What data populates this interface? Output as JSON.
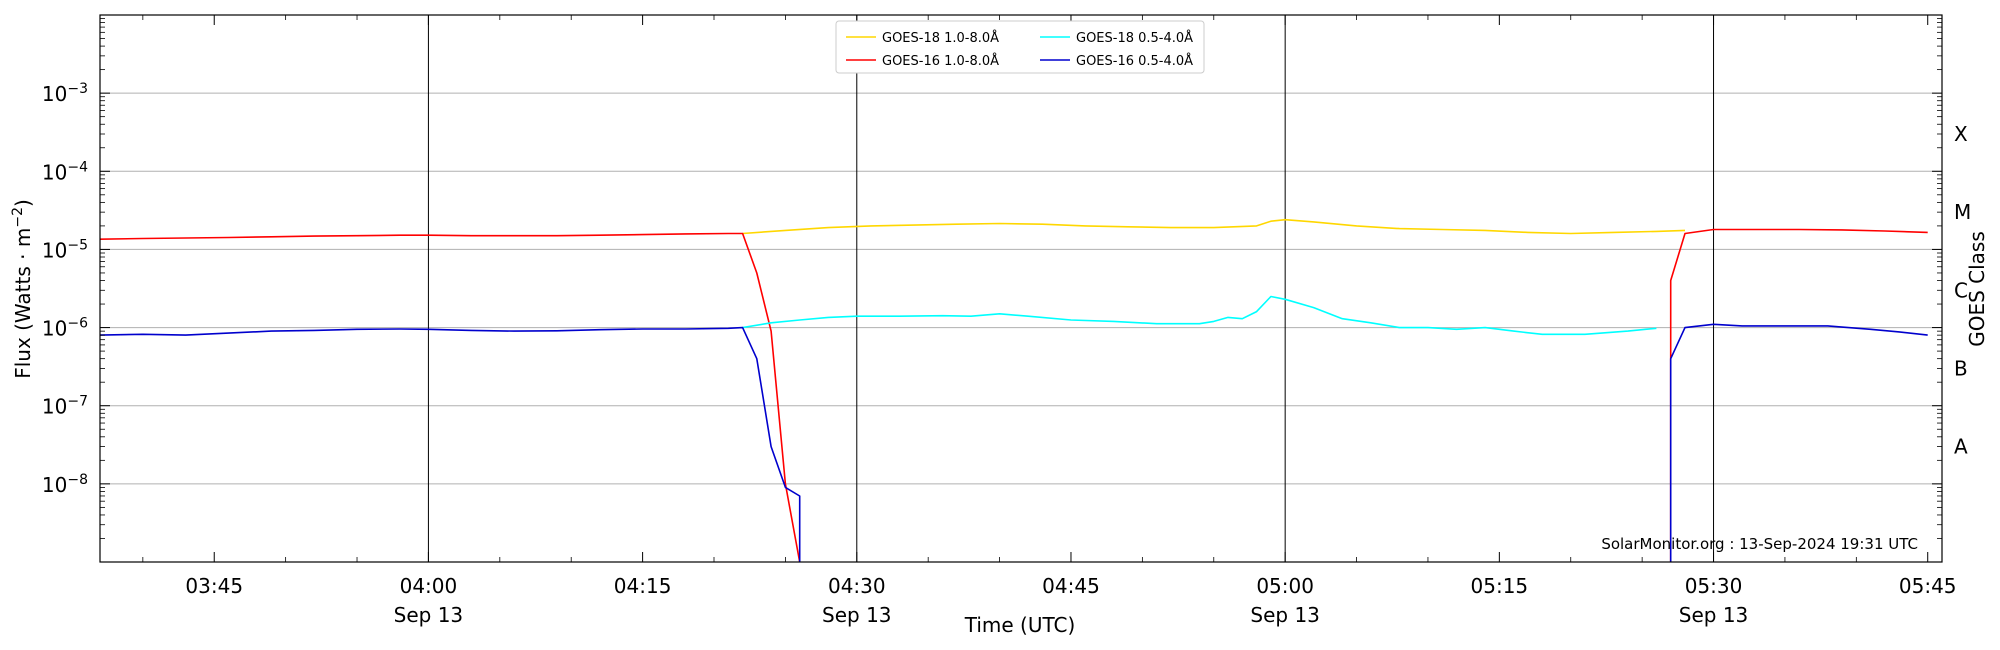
{
  "chart_data": {
    "type": "line",
    "xlabel": "Time (UTC)",
    "ylabel": "Flux (Watts · m⁻²)",
    "y2label": "GOES Class",
    "yscale": "log",
    "ylim": [
      1e-09,
      0.01
    ],
    "xlim": [
      "2024-09-13 03:37",
      "2024-09-13 05:46"
    ],
    "grid": "horizontal major gridlines at each decade; vertical lines at 04:00, 04:30, 05:00, 05:30",
    "legend_position": "top-center",
    "credit": "SolarMonitor.org : 13-Sep-2024 19:31 UTC",
    "x_ticks": [
      {
        "time": "03:45",
        "date": ""
      },
      {
        "time": "04:00",
        "date": "Sep 13"
      },
      {
        "time": "04:15",
        "date": ""
      },
      {
        "time": "04:30",
        "date": "Sep 13"
      },
      {
        "time": "04:45",
        "date": ""
      },
      {
        "time": "05:00",
        "date": "Sep 13"
      },
      {
        "time": "05:15",
        "date": ""
      },
      {
        "time": "05:30",
        "date": "Sep 13"
      },
      {
        "time": "05:45",
        "date": ""
      }
    ],
    "y_ticks": [
      {
        "value": 0.001,
        "base": "10",
        "exp": "−3"
      },
      {
        "value": 0.0001,
        "base": "10",
        "exp": "−4"
      },
      {
        "value": 1e-05,
        "base": "10",
        "exp": "−5"
      },
      {
        "value": 1e-06,
        "base": "10",
        "exp": "−6"
      },
      {
        "value": 1e-07,
        "base": "10",
        "exp": "−7"
      },
      {
        "value": 1e-08,
        "base": "10",
        "exp": "−8"
      }
    ],
    "goes_classes": [
      {
        "label": "X",
        "value": 0.0003
      },
      {
        "label": "M",
        "value": 3e-05
      },
      {
        "label": "C",
        "value": 3e-06
      },
      {
        "label": "B",
        "value": 3e-07
      },
      {
        "label": "A",
        "value": 3e-08
      }
    ],
    "series": [
      {
        "name": "GOES-18 1.0-8.0Å",
        "color": "#ffd700",
        "points": [
          [
            "04:22",
            1.6e-05
          ],
          [
            "04:25",
            1.75e-05
          ],
          [
            "04:28",
            1.9e-05
          ],
          [
            "04:31",
            2e-05
          ],
          [
            "04:34",
            2.05e-05
          ],
          [
            "04:37",
            2.1e-05
          ],
          [
            "04:40",
            2.15e-05
          ],
          [
            "04:43",
            2.1e-05
          ],
          [
            "04:46",
            2e-05
          ],
          [
            "04:49",
            1.95e-05
          ],
          [
            "04:52",
            1.9e-05
          ],
          [
            "04:55",
            1.9e-05
          ],
          [
            "04:58",
            2e-05
          ],
          [
            "04:59",
            2.3e-05
          ],
          [
            "05:00",
            2.4e-05
          ],
          [
            "05:02",
            2.25e-05
          ],
          [
            "05:05",
            2e-05
          ],
          [
            "05:08",
            1.85e-05
          ],
          [
            "05:11",
            1.8e-05
          ],
          [
            "05:14",
            1.75e-05
          ],
          [
            "05:17",
            1.65e-05
          ],
          [
            "05:20",
            1.6e-05
          ],
          [
            "05:23",
            1.65e-05
          ],
          [
            "05:26",
            1.7e-05
          ],
          [
            "05:28",
            1.75e-05
          ]
        ]
      },
      {
        "name": "GOES-16 1.0-8.0Å",
        "color": "#ff0000",
        "points": [
          [
            "03:37",
            1.35e-05
          ],
          [
            "03:40",
            1.38e-05
          ],
          [
            "03:43",
            1.4e-05
          ],
          [
            "03:46",
            1.42e-05
          ],
          [
            "03:49",
            1.45e-05
          ],
          [
            "03:52",
            1.48e-05
          ],
          [
            "03:55",
            1.5e-05
          ],
          [
            "03:58",
            1.52e-05
          ],
          [
            "04:00",
            1.52e-05
          ],
          [
            "04:03",
            1.5e-05
          ],
          [
            "04:06",
            1.5e-05
          ],
          [
            "04:09",
            1.5e-05
          ],
          [
            "04:12",
            1.52e-05
          ],
          [
            "04:15",
            1.55e-05
          ],
          [
            "04:18",
            1.58e-05
          ],
          [
            "04:21",
            1.6e-05
          ],
          [
            "04:22",
            1.6e-05
          ],
          [
            "04:23",
            5e-06
          ],
          [
            "04:24",
            9e-07
          ],
          [
            "04:25",
            1e-08
          ],
          [
            "04:26",
            1e-09
          ],
          null,
          [
            "05:27",
            1e-09
          ],
          [
            "05:27",
            4e-06
          ],
          [
            "05:28",
            1.6e-05
          ],
          [
            "05:30",
            1.8e-05
          ],
          [
            "05:33",
            1.8e-05
          ],
          [
            "05:36",
            1.8e-05
          ],
          [
            "05:39",
            1.78e-05
          ],
          [
            "05:42",
            1.72e-05
          ],
          [
            "05:45",
            1.65e-05
          ]
        ]
      },
      {
        "name": "GOES-18 0.5-4.0Å",
        "color": "#00ffff",
        "points": [
          [
            "04:22",
            1e-06
          ],
          [
            "04:24",
            1.15e-06
          ],
          [
            "04:26",
            1.25e-06
          ],
          [
            "04:28",
            1.35e-06
          ],
          [
            "04:30",
            1.4e-06
          ],
          [
            "04:33",
            1.4e-06
          ],
          [
            "04:36",
            1.42e-06
          ],
          [
            "04:38",
            1.4e-06
          ],
          [
            "04:40",
            1.5e-06
          ],
          [
            "04:42",
            1.4e-06
          ],
          [
            "04:45",
            1.25e-06
          ],
          [
            "04:48",
            1.2e-06
          ],
          [
            "04:51",
            1.12e-06
          ],
          [
            "04:54",
            1.12e-06
          ],
          [
            "04:55",
            1.2e-06
          ],
          [
            "04:56",
            1.35e-06
          ],
          [
            "04:57",
            1.3e-06
          ],
          [
            "04:58",
            1.6e-06
          ],
          [
            "04:59",
            2.5e-06
          ],
          [
            "05:00",
            2.3e-06
          ],
          [
            "05:02",
            1.8e-06
          ],
          [
            "05:04",
            1.3e-06
          ],
          [
            "05:06",
            1.15e-06
          ],
          [
            "05:08",
            1e-06
          ],
          [
            "05:10",
            1e-06
          ],
          [
            "05:12",
            9.5e-07
          ],
          [
            "05:14",
            1e-06
          ],
          [
            "05:16",
            9e-07
          ],
          [
            "05:18",
            8.2e-07
          ],
          [
            "05:21",
            8.2e-07
          ],
          [
            "05:24",
            9e-07
          ],
          [
            "05:26",
            9.8e-07
          ]
        ]
      },
      {
        "name": "GOES-16 0.5-4.0Å",
        "color": "#0000cd",
        "points": [
          [
            "03:37",
            8e-07
          ],
          [
            "03:40",
            8.2e-07
          ],
          [
            "03:43",
            8e-07
          ],
          [
            "03:46",
            8.5e-07
          ],
          [
            "03:49",
            9e-07
          ],
          [
            "03:52",
            9.2e-07
          ],
          [
            "03:55",
            9.5e-07
          ],
          [
            "03:58",
            9.6e-07
          ],
          [
            "04:00",
            9.5e-07
          ],
          [
            "04:03",
            9.2e-07
          ],
          [
            "04:06",
            9e-07
          ],
          [
            "04:09",
            9.1e-07
          ],
          [
            "04:12",
            9.4e-07
          ],
          [
            "04:15",
            9.6e-07
          ],
          [
            "04:18",
            9.6e-07
          ],
          [
            "04:21",
            9.8e-07
          ],
          [
            "04:22",
            1e-06
          ],
          [
            "04:23",
            4e-07
          ],
          [
            "04:24",
            3e-08
          ],
          [
            "04:25",
            9e-09
          ],
          [
            "04:26",
            7e-09
          ],
          [
            "04:26",
            1e-09
          ],
          null,
          [
            "05:27",
            1e-09
          ],
          [
            "05:27",
            4e-07
          ],
          [
            "05:28",
            1e-06
          ],
          [
            "05:30",
            1.1e-06
          ],
          [
            "05:32",
            1.05e-06
          ],
          [
            "05:35",
            1.05e-06
          ],
          [
            "05:38",
            1.05e-06
          ],
          [
            "05:41",
            9.5e-07
          ],
          [
            "05:43",
            8.8e-07
          ],
          [
            "05:45",
            8e-07
          ]
        ]
      }
    ]
  }
}
